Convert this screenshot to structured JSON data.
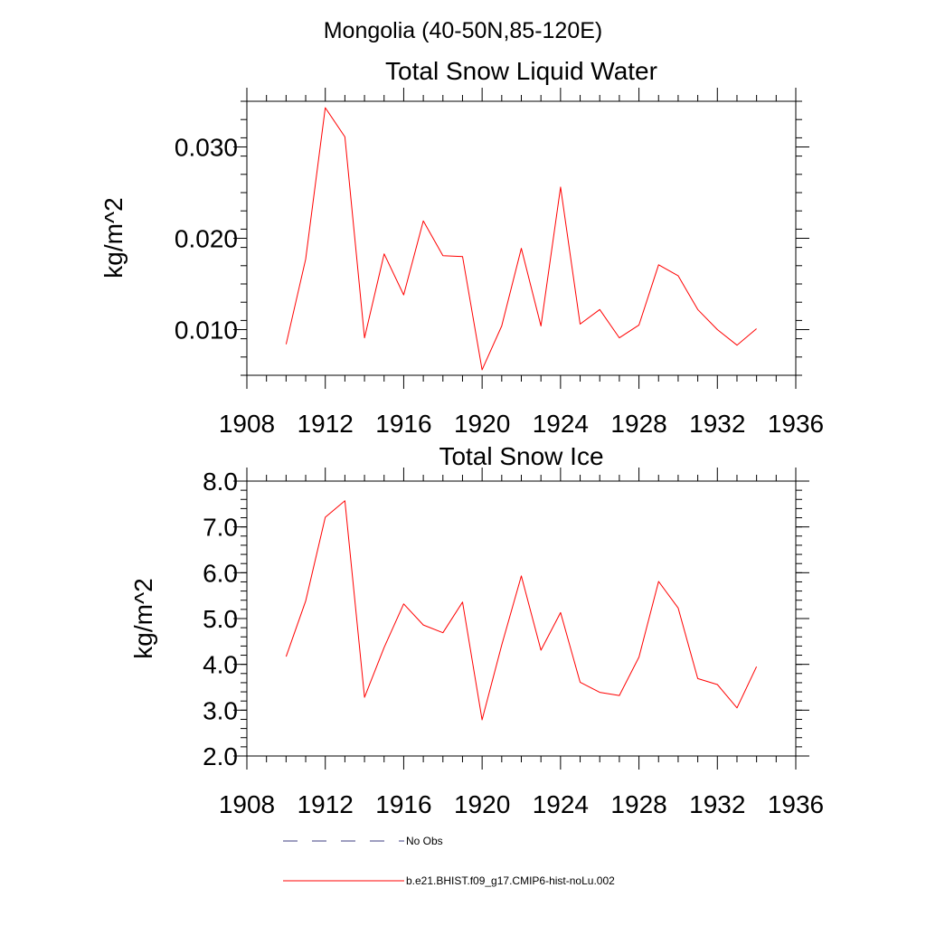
{
  "figure": {
    "suptitle": "Mongolia (40-50N,85-120E)",
    "colors": {
      "model": "#ff0000",
      "obs": "#3c3c82",
      "axis": "#000000"
    }
  },
  "chart_data": [
    {
      "type": "line",
      "title": "Total Snow Liquid Water",
      "xlabel": "",
      "ylabel": "kg/m^2",
      "xlim": [
        1908,
        1936
      ],
      "ylim": [
        0.005,
        0.035
      ],
      "xticks": [
        "1908",
        "1912",
        "1916",
        "1920",
        "1924",
        "1928",
        "1932",
        "1936"
      ],
      "yticks": [
        {
          "value": 0.01,
          "label": "0.010"
        },
        {
          "value": 0.02,
          "label": "0.020"
        },
        {
          "value": 0.03,
          "label": "0.030"
        }
      ],
      "grid": false,
      "x": [
        1910,
        1911,
        1912,
        1913,
        1914,
        1915,
        1916,
        1917,
        1918,
        1919,
        1920,
        1921,
        1922,
        1923,
        1924,
        1925,
        1926,
        1927,
        1928,
        1929,
        1930,
        1931,
        1932,
        1933,
        1934
      ],
      "series": [
        {
          "name": "b.e21.BHIST.f09_g17.CMIP6-hist-noLu.002",
          "color": "#ff0000",
          "values": [
            0.0084,
            0.0177,
            0.0343,
            0.0311,
            0.0091,
            0.0183,
            0.0138,
            0.0219,
            0.0181,
            0.018,
            0.0056,
            0.0104,
            0.0189,
            0.0104,
            0.0256,
            0.0106,
            0.0122,
            0.0091,
            0.0105,
            0.0171,
            0.0159,
            0.0122,
            0.01,
            0.0083,
            0.0101
          ]
        }
      ]
    },
    {
      "type": "line",
      "title": "Total Snow Ice",
      "xlabel": "",
      "ylabel": "kg/m^2",
      "xlim": [
        1908,
        1936
      ],
      "ylim": [
        2.0,
        8.0
      ],
      "xticks": [
        "1908",
        "1912",
        "1916",
        "1920",
        "1924",
        "1928",
        "1932",
        "1936"
      ],
      "yticks": [
        {
          "value": 2.0,
          "label": "2.0"
        },
        {
          "value": 3.0,
          "label": "3.0"
        },
        {
          "value": 4.0,
          "label": "4.0"
        },
        {
          "value": 5.0,
          "label": "5.0"
        },
        {
          "value": 6.0,
          "label": "6.0"
        },
        {
          "value": 7.0,
          "label": "7.0"
        },
        {
          "value": 8.0,
          "label": "8.0"
        }
      ],
      "grid": false,
      "x": [
        1910,
        1911,
        1912,
        1913,
        1914,
        1915,
        1916,
        1917,
        1918,
        1919,
        1920,
        1921,
        1922,
        1923,
        1924,
        1925,
        1926,
        1927,
        1928,
        1929,
        1930,
        1931,
        1932,
        1933,
        1934
      ],
      "series": [
        {
          "name": "b.e21.BHIST.f09_g17.CMIP6-hist-noLu.002",
          "color": "#ff0000",
          "values": [
            4.17,
            5.38,
            7.21,
            7.57,
            3.28,
            4.37,
            5.32,
            4.86,
            4.69,
            5.36,
            2.79,
            4.42,
            5.93,
            4.31,
            5.13,
            3.61,
            3.39,
            3.32,
            4.16,
            5.81,
            5.23,
            3.69,
            3.56,
            3.05,
            3.95
          ]
        }
      ]
    }
  ],
  "legend": {
    "placement": "bottom",
    "items": [
      {
        "label": "No Obs",
        "style": "dashed",
        "color": "#3c3c82"
      },
      {
        "label": "b.e21.BHIST.f09_g17.CMIP6-hist-noLu.002",
        "style": "solid",
        "color": "#ff0000"
      }
    ]
  }
}
